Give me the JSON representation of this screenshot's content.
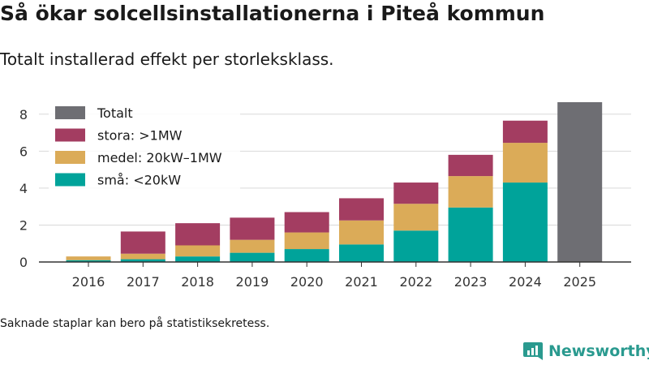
{
  "header": {
    "title": "Så ökar solcellsinstallationerna i Piteå kommun",
    "subtitle": "Totalt installerad effekt per storleksklass."
  },
  "footer": {
    "note": "Saknade staplar kan bero på statistiksekretess.",
    "brand": "Newsworthy"
  },
  "chart_data": {
    "type": "bar",
    "stacked": true,
    "categories": [
      "2016",
      "2017",
      "2018",
      "2019",
      "2020",
      "2021",
      "2022",
      "2023",
      "2024",
      "2025"
    ],
    "series": [
      {
        "name": "små: <20kW",
        "color": "#00a39a",
        "values": [
          0.1,
          0.15,
          0.3,
          0.5,
          0.7,
          0.95,
          1.7,
          2.95,
          4.3,
          null
        ]
      },
      {
        "name": "medel: 20kW–1MW",
        "color": "#dbab58",
        "values": [
          0.2,
          0.3,
          0.6,
          0.7,
          0.9,
          1.3,
          1.45,
          1.7,
          2.15,
          null
        ]
      },
      {
        "name": "stora: >1MW",
        "color": "#a33d61",
        "values": [
          0.0,
          1.2,
          1.2,
          1.2,
          1.1,
          1.2,
          1.15,
          1.15,
          1.2,
          null
        ]
      },
      {
        "name": "Totalt",
        "color": "#6e6e73",
        "values": [
          null,
          null,
          null,
          null,
          null,
          null,
          null,
          null,
          null,
          8.65
        ]
      }
    ],
    "legend_order": [
      "Totalt",
      "stora: >1MW",
      "medel: 20kW–1MW",
      "små: <20kW"
    ],
    "yticks": [
      0,
      2,
      4,
      6,
      8
    ],
    "ylim": [
      0,
      9
    ],
    "grid": true,
    "legend_position": "top-left",
    "xlabel": "",
    "ylabel": ""
  }
}
